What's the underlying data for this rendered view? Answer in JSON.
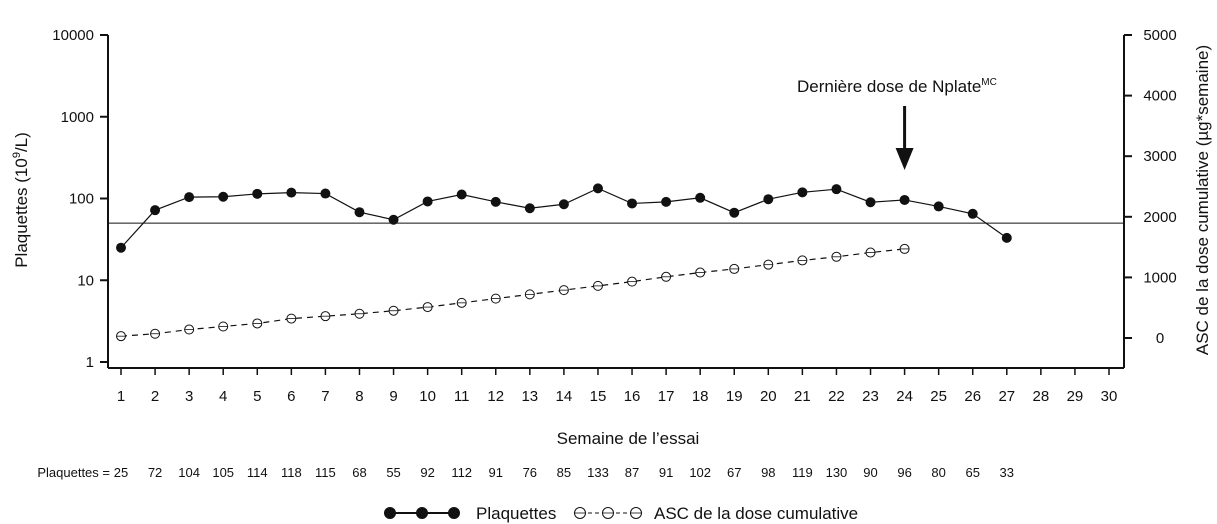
{
  "chart_data": {
    "type": "line",
    "xlabel": "Semaine de l’essai",
    "x": [
      1,
      2,
      3,
      4,
      5,
      6,
      7,
      8,
      9,
      10,
      11,
      12,
      13,
      14,
      15,
      16,
      17,
      18,
      19,
      20,
      21,
      22,
      23,
      24,
      25,
      26,
      27,
      28,
      29,
      30
    ],
    "xlim": [
      1,
      30
    ],
    "y_left": {
      "label_main": "Plaquettes (10",
      "label_sup": "9",
      "label_end": "/L)",
      "scale": "log",
      "ylim": [
        1,
        10000
      ],
      "ticks": [
        "1",
        "10",
        "100",
        "1000",
        "10000"
      ]
    },
    "y_right": {
      "label": "ASC de la dose cumulative (µg*semaine)",
      "scale": "linear",
      "ylim": [
        -500,
        5000
      ],
      "ticks": [
        "0",
        "1000",
        "2000",
        "3000",
        "4000",
        "5000"
      ]
    },
    "series": [
      {
        "name": "Plaquettes",
        "axis": "left",
        "style": "solid-filled-circles",
        "color": "#111111",
        "x": [
          1,
          2,
          3,
          4,
          5,
          6,
          7,
          8,
          9,
          10,
          11,
          12,
          13,
          14,
          15,
          16,
          17,
          18,
          19,
          20,
          21,
          22,
          23,
          24,
          25,
          26,
          27
        ],
        "values": [
          25,
          72,
          104,
          105,
          114,
          118,
          115,
          68,
          55,
          92,
          112,
          91,
          76,
          85,
          133,
          87,
          91,
          102,
          67,
          98,
          119,
          130,
          90,
          96,
          80,
          65,
          33
        ]
      },
      {
        "name": "ASC de la dose cumulative",
        "axis": "right",
        "style": "dashed-open-circles",
        "color": "#111111",
        "x": [
          1,
          2,
          3,
          4,
          5,
          6,
          7,
          8,
          9,
          10,
          11,
          12,
          13,
          14,
          15,
          16,
          17,
          18,
          19,
          20,
          21,
          22,
          23,
          24
        ],
        "values": [
          30,
          70,
          140,
          190,
          240,
          320,
          360,
          400,
          450,
          510,
          580,
          650,
          720,
          790,
          860,
          930,
          1010,
          1080,
          1140,
          1210,
          1280,
          1340,
          1410,
          1470
        ]
      }
    ],
    "threshold": {
      "axis": "left",
      "value": 50
    },
    "annotation": {
      "text": "Dernière dose de Nplate",
      "superscript": "MC",
      "x": 24
    },
    "platelet_row": {
      "label": "Plaquettes =",
      "values": [
        "25",
        "72",
        "104",
        "105",
        "114",
        "118",
        "115",
        "68",
        "55",
        "92",
        "112",
        "91",
        "76",
        "85",
        "133",
        "87",
        "91",
        "102",
        "67",
        "98",
        "119",
        "130",
        "90",
        "96",
        "80",
        "65",
        "33"
      ]
    },
    "legend": {
      "placement": "bottom-center",
      "items": [
        {
          "label": "Plaquettes",
          "marker": "filled"
        },
        {
          "label": "ASC de la dose cumulative",
          "marker": "open"
        }
      ]
    }
  }
}
